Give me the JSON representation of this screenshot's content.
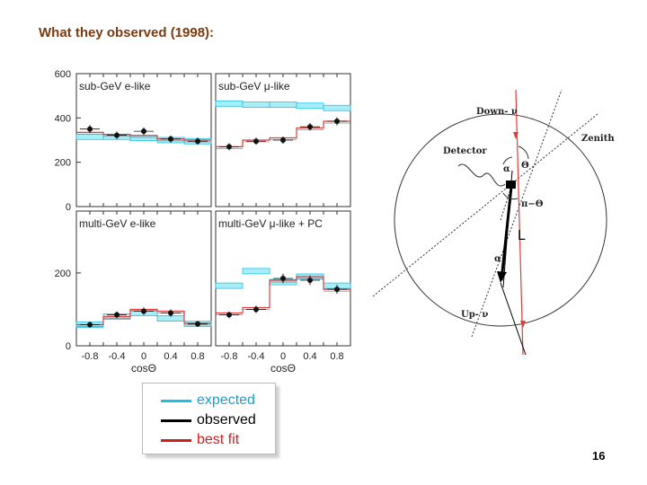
{
  "slide": {
    "title": "What they observed (1998):",
    "page_number": "16"
  },
  "legend": {
    "items": [
      {
        "label": "expected",
        "color": "#1ec0e0",
        "text_color": "#1a9fcf"
      },
      {
        "label": "observed",
        "color": "#000000",
        "text_color": "#000000"
      },
      {
        "label": "best fit",
        "color": "#cc1f1f",
        "text_color": "#cc1f1f"
      }
    ]
  },
  "colors": {
    "expected_band": "#a8eef8",
    "expected_edge": "#22c4e6",
    "best_fit": "#e23b3b",
    "observed": "#111111"
  },
  "chart_data": [
    {
      "type": "histogram",
      "panel": "top-left",
      "label": "sub-GeV e-like",
      "x_tick_labels": [
        "-0.8",
        "-0.4",
        "0",
        "0.4",
        "0.8"
      ],
      "y_tick_labels": [
        "0",
        "200",
        "400",
        "600"
      ],
      "xlabel": "",
      "xlim": [
        -1,
        1
      ],
      "ylim": [
        0,
        600
      ],
      "bin_edges": [
        -1,
        -0.6,
        -0.2,
        0.2,
        0.6,
        1
      ],
      "expected": [
        315,
        315,
        310,
        300,
        295
      ],
      "best_fit": [
        335,
        325,
        320,
        305,
        300
      ],
      "observed": [
        350,
        322,
        340,
        305,
        295
      ],
      "observed_err": [
        18,
        17,
        17,
        16,
        16
      ]
    },
    {
      "type": "histogram",
      "panel": "top-right",
      "label": "sub-GeV μ-like",
      "x_tick_labels": [],
      "y_tick_labels": [],
      "xlabel": "",
      "xlim": [
        -1,
        1
      ],
      "ylim": [
        0,
        600
      ],
      "bin_edges": [
        -1,
        -0.6,
        -0.2,
        0.2,
        0.6,
        1
      ],
      "expected": [
        465,
        460,
        460,
        455,
        445
      ],
      "best_fit": [
        270,
        300,
        310,
        355,
        385
      ],
      "observed": [
        270,
        295,
        300,
        360,
        385
      ],
      "observed_err": [
        16,
        16,
        16,
        17,
        18
      ]
    },
    {
      "type": "histogram",
      "panel": "bottom-left",
      "label": "multi-GeV e-like",
      "x_tick_labels": [
        "-0.8",
        "-0.4",
        "0",
        "0.4",
        "0.8"
      ],
      "y_tick_labels": [
        "0",
        "200"
      ],
      "xlabel": "cosΘ",
      "xlim": [
        -1,
        1
      ],
      "ylim": [
        0,
        370
      ],
      "bin_edges": [
        -1,
        -0.6,
        -0.2,
        0.2,
        0.6,
        1
      ],
      "expected": [
        58,
        80,
        90,
        75,
        60
      ],
      "best_fit": [
        58,
        80,
        100,
        95,
        62
      ],
      "observed": [
        58,
        85,
        95,
        90,
        60
      ],
      "observed_err": [
        8,
        9,
        10,
        10,
        8
      ]
    },
    {
      "type": "histogram",
      "panel": "bottom-right",
      "label": "multi-GeV μ-like + PC",
      "x_tick_labels": [
        "-0.8",
        "-0.4",
        "0",
        "0.4",
        "0.8"
      ],
      "y_tick_labels": [],
      "xlabel": "cosΘ",
      "xlim": [
        -1,
        1
      ],
      "ylim": [
        0,
        370
      ],
      "bin_edges": [
        -1,
        -0.6,
        -0.2,
        0.2,
        0.6,
        1
      ],
      "expected": [
        165,
        205,
        175,
        190,
        165
      ],
      "best_fit": [
        90,
        105,
        180,
        190,
        155
      ],
      "observed": [
        85,
        100,
        185,
        180,
        155
      ],
      "observed_err": [
        9,
        10,
        13,
        13,
        12
      ]
    }
  ],
  "diagram": {
    "down_label": "Down- ν",
    "up_label": "Up- ν",
    "zenith_label": "Zenith",
    "detector_label": "Detector",
    "theta_label": "Θ",
    "pi_theta_label": "π−Θ",
    "alpha_label": "α",
    "L_label": "L"
  }
}
